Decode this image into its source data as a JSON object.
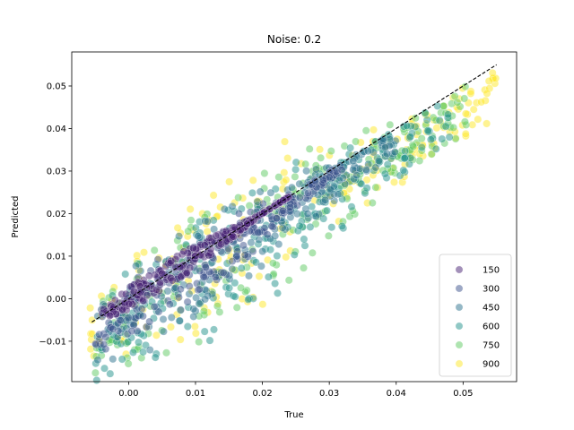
{
  "chart_data": {
    "type": "scatter",
    "title": "Noise: 0.2",
    "xlabel": "True",
    "ylabel": "Predicted",
    "xlim": [
      -0.0085,
      0.058
    ],
    "ylim": [
      -0.0195,
      0.058
    ],
    "xticks": [
      0.0,
      0.01,
      0.02,
      0.03,
      0.04,
      0.05
    ],
    "xtick_labels": [
      "0.00",
      "0.01",
      "0.02",
      "0.03",
      "0.04",
      "0.05"
    ],
    "yticks": [
      -0.01,
      0.0,
      0.01,
      0.02,
      0.03,
      0.04,
      0.05
    ],
    "ytick_labels": [
      "−0.01",
      "0.00",
      "0.01",
      "0.02",
      "0.03",
      "0.04",
      "0.05"
    ],
    "reference_line": {
      "style": "dashed",
      "color": "#000000",
      "x": [
        -0.0055,
        0.055
      ],
      "y": [
        -0.0055,
        0.055
      ]
    },
    "grid": false,
    "legend_placement": "lower-right",
    "point_alpha": 0.5,
    "hue_levels": [
      150,
      300,
      450,
      600,
      750,
      900
    ],
    "series": [
      {
        "name": "150",
        "color": "#482173"
      },
      {
        "name": "300",
        "color": "#3b528b"
      },
      {
        "name": "450",
        "color": "#2c728e"
      },
      {
        "name": "600",
        "color": "#21918c"
      },
      {
        "name": "750",
        "color": "#5ec962"
      },
      {
        "name": "900",
        "color": "#fde725"
      }
    ],
    "fans": [
      {
        "hue": 150,
        "x_range": [
          -0.004,
          0.024
        ],
        "y_at_min_noise": [
          -0.004,
          0.024
        ],
        "spread": 0.003
      },
      {
        "hue": 300,
        "x_range": [
          -0.005,
          0.032
        ],
        "y_at_min_noise": [
          -0.014,
          0.03
        ],
        "spread": 0.006
      },
      {
        "hue": 450,
        "x_range": [
          -0.005,
          0.04
        ],
        "y_at_min_noise": [
          -0.014,
          0.034
        ],
        "spread": 0.009
      },
      {
        "hue": 600,
        "x_range": [
          -0.005,
          0.048
        ],
        "y_at_min_noise": [
          -0.016,
          0.036
        ],
        "spread": 0.012
      },
      {
        "hue": 750,
        "x_range": [
          -0.005,
          0.052
        ],
        "y_at_min_noise": [
          -0.012,
          0.04
        ],
        "spread": 0.014
      },
      {
        "hue": 900,
        "x_range": [
          -0.006,
          0.055
        ],
        "y_at_min_noise": [
          -0.01,
          0.042
        ],
        "spread": 0.016
      }
    ]
  }
}
